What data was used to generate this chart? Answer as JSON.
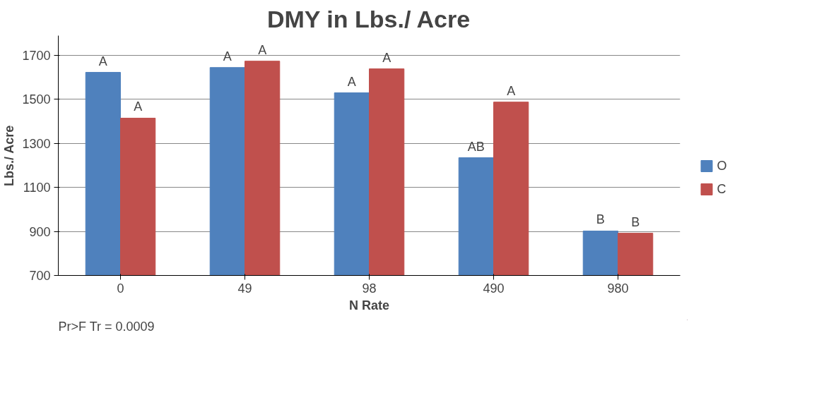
{
  "chart_data": {
    "type": "bar",
    "title": "DMY in Lbs./ Acre",
    "xlabel": "N Rate",
    "ylabel": "Lbs./ Acre",
    "categories": [
      "0",
      "49",
      "98",
      "490",
      "980"
    ],
    "series": [
      {
        "name": "O",
        "color": "#4f81bd",
        "values": [
          1623,
          1645,
          1530,
          1235,
          902
        ],
        "value_labels": [
          "A",
          "A",
          "A",
          "AB",
          "B"
        ]
      },
      {
        "name": "C",
        "color": "#c0504d",
        "values": [
          1415,
          1674,
          1639,
          1488,
          892
        ],
        "value_labels": [
          "A",
          "A",
          "A",
          "A",
          "B"
        ]
      }
    ],
    "ylim": [
      700,
      1790
    ],
    "yticks": [
      700,
      900,
      1100,
      1300,
      1500,
      1700
    ],
    "grid": "y",
    "legend": "right",
    "annotations": [
      "Pr>F Tr = 0.0009"
    ]
  }
}
